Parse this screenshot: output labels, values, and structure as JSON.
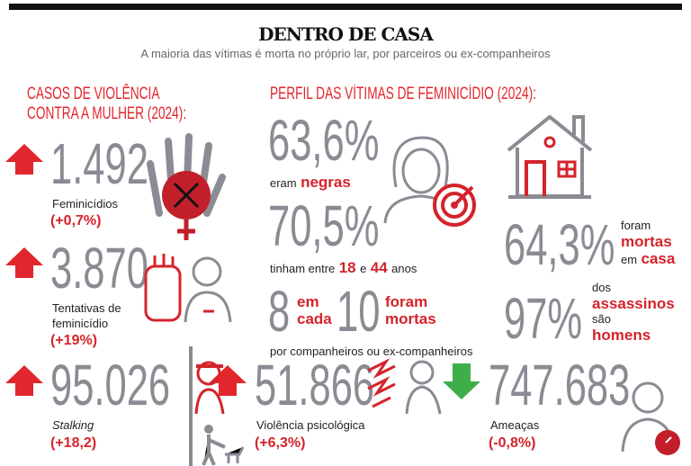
{
  "header": {
    "title": "DENTRO DE CASA",
    "subtitle": "A maioria das vítimas é morta no próprio lar, por parceiros ou ex-companheiros"
  },
  "left": {
    "title_line1": "CASOS DE VIOLÊNCIA",
    "title_line2": "CONTRA A MULHER (2024):"
  },
  "stats": [
    {
      "value": "1.492",
      "label": "Feminicídios",
      "delta": "(+0,7%)",
      "trend": "up"
    },
    {
      "value": "3.870",
      "label_line1": "Tentativas de",
      "label_line2": "feminicídio",
      "delta": "(+19%)",
      "trend": "up"
    },
    {
      "value": "95.026",
      "label": "Stalking",
      "delta": "(+18,2)",
      "trend": "up"
    },
    {
      "value": "51.866",
      "label": "Violência psicológica",
      "delta": "(+6,3%)",
      "trend": "up"
    },
    {
      "value": "747.683",
      "label": "Ameaças",
      "delta": "(-0,8%)",
      "trend": "down"
    }
  ],
  "profile": {
    "title": "PERFIL DAS VÍTIMAS DE FEMINICÍDIO (2024):",
    "negras": {
      "value": "63,6%",
      "pre": "eram",
      "highlight": "negras"
    },
    "idade": {
      "value": "70,5%",
      "pre": "tinham entre",
      "a": "18",
      "mid": "e",
      "b": "44",
      "post": "anos"
    },
    "parceiros": {
      "n1": "8",
      "w1a": "em",
      "w1b": "cada",
      "n2": "10",
      "w2a": "foram",
      "w2b": "mortas",
      "caption": "por companheiros ou ex-companheiros"
    },
    "casa": {
      "value": "64,3%",
      "l1": "foram",
      "l2": "mortas",
      "l3a": "em",
      "l3b": "casa"
    },
    "homens": {
      "value": "97%",
      "l1": "dos",
      "l2": "assassinos",
      "l3": "são",
      "l4": "homens"
    }
  },
  "colors": {
    "red": "#d5232b",
    "grey": "#8a8b93",
    "green": "#3fae49"
  }
}
